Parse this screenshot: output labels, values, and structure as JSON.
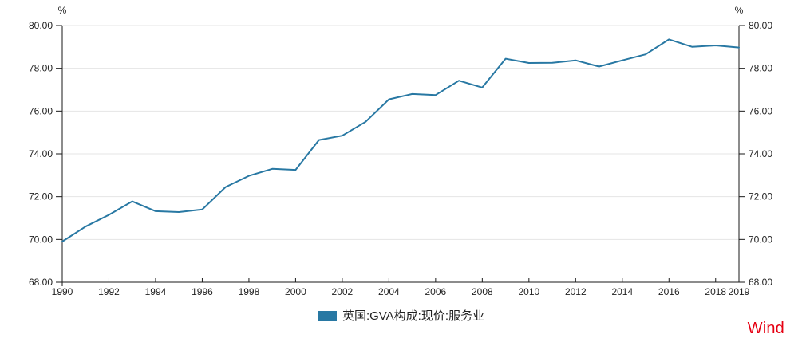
{
  "chart": {
    "left_axis_unit": "%",
    "right_axis_unit": "%"
  },
  "legend": {
    "label": "英国:GVA构成:现价:服务业"
  },
  "branding": {
    "logo_text": "Wind",
    "logo_color": "#e60012"
  },
  "colors": {
    "line": "#2878a3",
    "grid": "#e4e4e4",
    "axis": "#1a1a1a",
    "tick_text": "#222222"
  },
  "chart_data": {
    "type": "line",
    "title": "",
    "xlabel": "",
    "ylabel": "%",
    "ylim": [
      68,
      80
    ],
    "y_tick_step": 2,
    "y_tick_format": "0.00",
    "grid": true,
    "legend_position": "bottom",
    "x": [
      1990,
      1991,
      1992,
      1993,
      1994,
      1995,
      1996,
      1997,
      1998,
      1999,
      2000,
      2001,
      2002,
      2003,
      2004,
      2005,
      2006,
      2007,
      2008,
      2009,
      2010,
      2011,
      2012,
      2013,
      2014,
      2015,
      2016,
      2017,
      2018,
      2019
    ],
    "x_tick_labels": [
      "1990",
      "1992",
      "1994",
      "1996",
      "1998",
      "2000",
      "2002",
      "2004",
      "2006",
      "2008",
      "2010",
      "2012",
      "2014",
      "2016",
      "2018",
      "2019"
    ],
    "series": [
      {
        "name": "英国:GVA构成:现价:服务业",
        "color": "#2878a3",
        "values": [
          69.9,
          70.6,
          71.15,
          71.78,
          71.32,
          71.28,
          71.4,
          72.45,
          72.97,
          73.3,
          73.25,
          74.65,
          74.85,
          75.5,
          76.55,
          76.8,
          76.75,
          77.42,
          77.1,
          78.45,
          78.25,
          78.26,
          78.37,
          78.08,
          78.37,
          78.65,
          79.35,
          79.0,
          79.07,
          78.97
        ]
      }
    ]
  }
}
